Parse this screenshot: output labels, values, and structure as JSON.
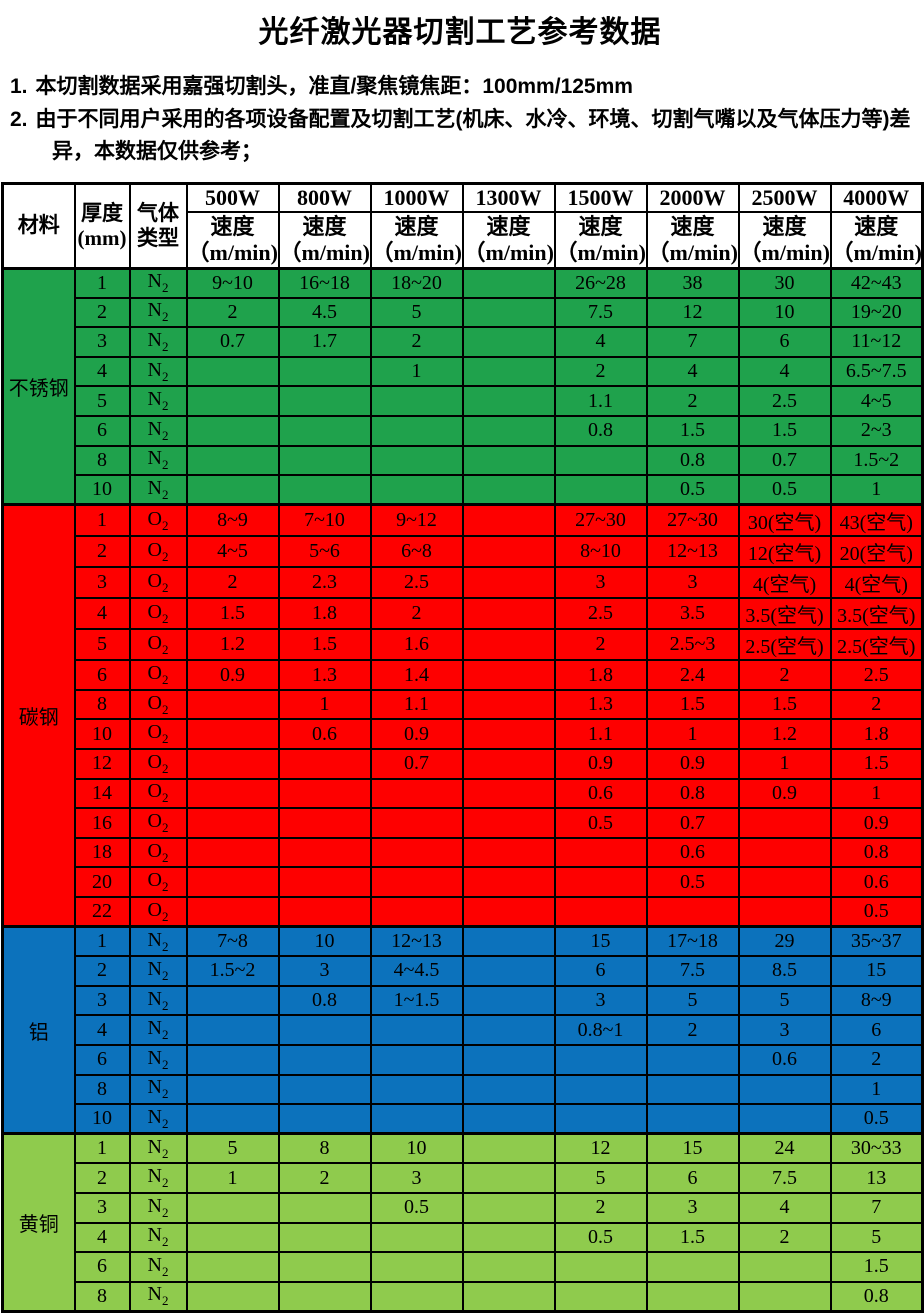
{
  "title": "光纤激光器切割工艺参考数据",
  "notes": [
    {
      "number": "1.",
      "text": "本切割数据采用嘉强切割头，准直/聚焦镜焦距：100mm/125mm"
    },
    {
      "number": "2.",
      "text": "由于不同用户采用的各项设备配置及切割工艺(机床、水冷、环境、切割气嘴以及气体压力等)差异，本数据仅供参考；"
    }
  ],
  "table": {
    "header": {
      "material": "材料",
      "thickness_line1": "厚度",
      "thickness_line2": "(mm)",
      "gas_line1": "气体",
      "gas_line2": "类型",
      "powers": [
        "500W",
        "800W",
        "1000W",
        "1300W",
        "1500W",
        "2000W",
        "2500W",
        "4000W"
      ],
      "speed_label": "速度",
      "speed_unit": "（m/min)"
    },
    "sections": [
      {
        "material": "不锈钢",
        "color": "#1FA24C",
        "gas": "N",
        "gas_sub": "2",
        "rows": [
          {
            "t": "1",
            "v": [
              "9~10",
              "16~18",
              "18~20",
              "",
              "26~28",
              "38",
              "30",
              "42~43"
            ]
          },
          {
            "t": "2",
            "v": [
              "2",
              "4.5",
              "5",
              "",
              "7.5",
              "12",
              "10",
              "19~20"
            ]
          },
          {
            "t": "3",
            "v": [
              "0.7",
              "1.7",
              "2",
              "",
              "4",
              "7",
              "6",
              "11~12"
            ]
          },
          {
            "t": "4",
            "v": [
              "",
              "",
              "1",
              "",
              "2",
              "4",
              "4",
              "6.5~7.5"
            ]
          },
          {
            "t": "5",
            "v": [
              "",
              "",
              "",
              "",
              "1.1",
              "2",
              "2.5",
              "4~5"
            ]
          },
          {
            "t": "6",
            "v": [
              "",
              "",
              "",
              "",
              "0.8",
              "1.5",
              "1.5",
              "2~3"
            ]
          },
          {
            "t": "8",
            "v": [
              "",
              "",
              "",
              "",
              "",
              "0.8",
              "0.7",
              "1.5~2"
            ]
          },
          {
            "t": "10",
            "v": [
              "",
              "",
              "",
              "",
              "",
              "0.5",
              "0.5",
              "1"
            ]
          }
        ]
      },
      {
        "material": "碳钢",
        "color": "#FE0000",
        "gas": "O",
        "gas_sub": "2",
        "rows": [
          {
            "t": "1",
            "v": [
              "8~9",
              "7~10",
              "9~12",
              "",
              "27~30",
              "27~30",
              "30(空气)",
              "43(空气)"
            ]
          },
          {
            "t": "2",
            "v": [
              "4~5",
              "5~6",
              "6~8",
              "",
              "8~10",
              "12~13",
              "12(空气)",
              "20(空气)"
            ]
          },
          {
            "t": "3",
            "v": [
              "2",
              "2.3",
              "2.5",
              "",
              "3",
              "3",
              "4(空气)",
              "4(空气)"
            ]
          },
          {
            "t": "4",
            "v": [
              "1.5",
              "1.8",
              "2",
              "",
              "2.5",
              "3.5",
              "3.5(空气)",
              "3.5(空气)"
            ]
          },
          {
            "t": "5",
            "v": [
              "1.2",
              "1.5",
              "1.6",
              "",
              "2",
              "2.5~3",
              "2.5(空气)",
              "2.5(空气)"
            ]
          },
          {
            "t": "6",
            "v": [
              "0.9",
              "1.3",
              "1.4",
              "",
              "1.8",
              "2.4",
              "2",
              "2.5"
            ]
          },
          {
            "t": "8",
            "v": [
              "",
              "1",
              "1.1",
              "",
              "1.3",
              "1.5",
              "1.5",
              "2"
            ]
          },
          {
            "t": "10",
            "v": [
              "",
              "0.6",
              "0.9",
              "",
              "1.1",
              "1",
              "1.2",
              "1.8"
            ]
          },
          {
            "t": "12",
            "v": [
              "",
              "",
              "0.7",
              "",
              "0.9",
              "0.9",
              "1",
              "1.5"
            ]
          },
          {
            "t": "14",
            "v": [
              "",
              "",
              "",
              "",
              "0.6",
              "0.8",
              "0.9",
              "1"
            ]
          },
          {
            "t": "16",
            "v": [
              "",
              "",
              "",
              "",
              "0.5",
              "0.7",
              "",
              "0.9"
            ]
          },
          {
            "t": "18",
            "v": [
              "",
              "",
              "",
              "",
              "",
              "0.6",
              "",
              "0.8"
            ]
          },
          {
            "t": "20",
            "v": [
              "",
              "",
              "",
              "",
              "",
              "0.5",
              "",
              "0.6"
            ]
          },
          {
            "t": "22",
            "v": [
              "",
              "",
              "",
              "",
              "",
              "",
              "",
              "0.5"
            ]
          }
        ]
      },
      {
        "material": "铝",
        "color": "#0C72BC",
        "gas": "N",
        "gas_sub": "2",
        "rows": [
          {
            "t": "1",
            "v": [
              "7~8",
              "10",
              "12~13",
              "",
              "15",
              "17~18",
              "29",
              "35~37"
            ]
          },
          {
            "t": "2",
            "v": [
              "1.5~2",
              "3",
              "4~4.5",
              "",
              "6",
              "7.5",
              "8.5",
              "15"
            ]
          },
          {
            "t": "3",
            "v": [
              "",
              "0.8",
              "1~1.5",
              "",
              "3",
              "5",
              "5",
              "8~9"
            ]
          },
          {
            "t": "4",
            "v": [
              "",
              "",
              "",
              "",
              "0.8~1",
              "2",
              "3",
              "6"
            ]
          },
          {
            "t": "6",
            "v": [
              "",
              "",
              "",
              "",
              "",
              "",
              "0.6",
              "2"
            ]
          },
          {
            "t": "8",
            "v": [
              "",
              "",
              "",
              "",
              "",
              "",
              "",
              "1"
            ]
          },
          {
            "t": "10",
            "v": [
              "",
              "",
              "",
              "",
              "",
              "",
              "",
              "0.5"
            ]
          }
        ]
      },
      {
        "material": "黄铜",
        "color": "#8FCB4D",
        "gas": "N",
        "gas_sub": "2",
        "rows": [
          {
            "t": "1",
            "v": [
              "5",
              "8",
              "10",
              "",
              "12",
              "15",
              "24",
              "30~33"
            ]
          },
          {
            "t": "2",
            "v": [
              "1",
              "2",
              "3",
              "",
              "5",
              "6",
              "7.5",
              "13"
            ]
          },
          {
            "t": "3",
            "v": [
              "",
              "",
              "0.5",
              "",
              "2",
              "3",
              "4",
              "7"
            ]
          },
          {
            "t": "4",
            "v": [
              "",
              "",
              "",
              "",
              "0.5",
              "1.5",
              "2",
              "5"
            ]
          },
          {
            "t": "6",
            "v": [
              "",
              "",
              "",
              "",
              "",
              "",
              "",
              "1.5"
            ]
          },
          {
            "t": "8",
            "v": [
              "",
              "",
              "",
              "",
              "",
              "",
              "",
              "0.8"
            ]
          }
        ]
      }
    ]
  }
}
